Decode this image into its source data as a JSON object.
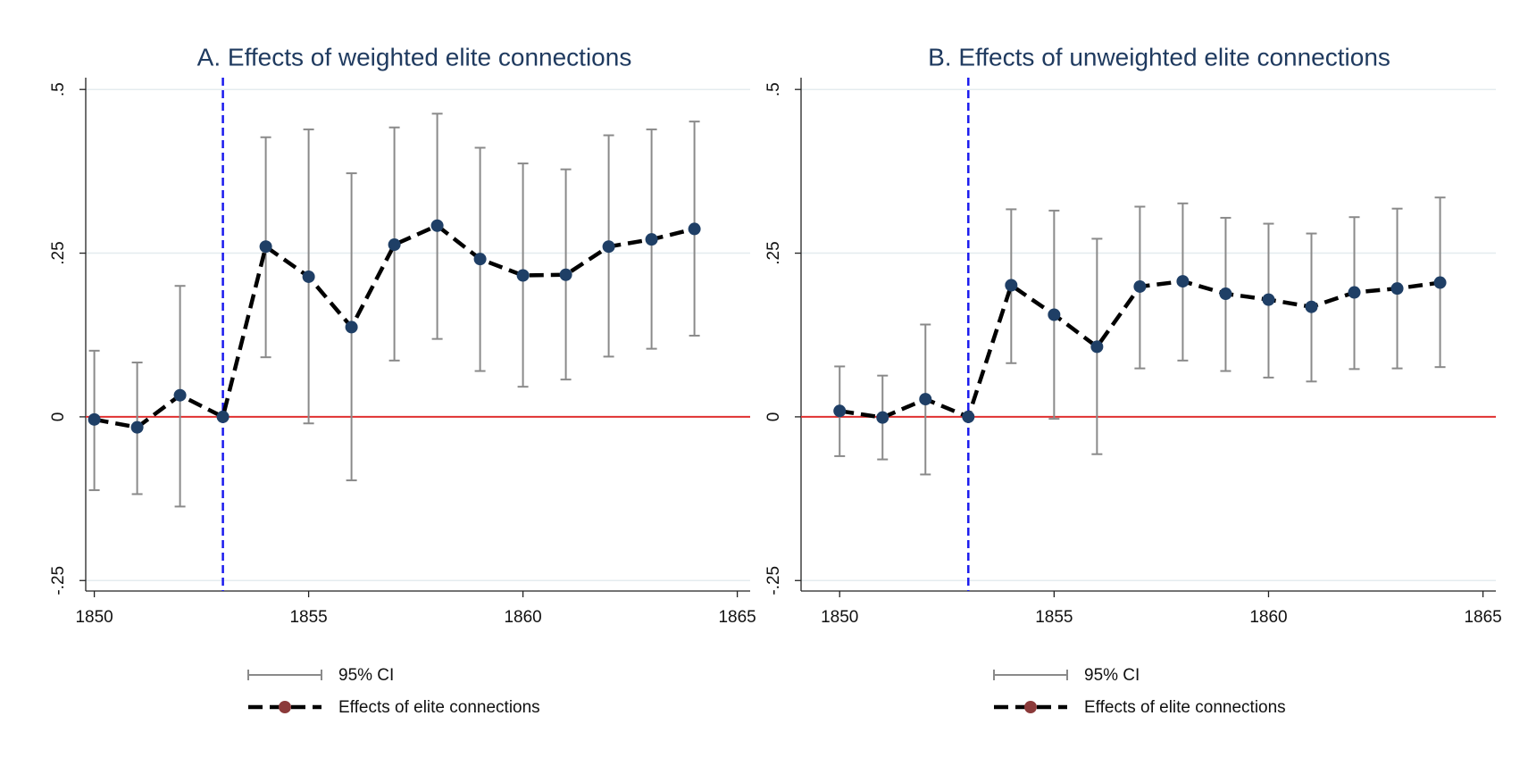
{
  "chart_data": [
    {
      "type": "line",
      "title": "A. Effects of weighted elite connections",
      "x": [
        1850,
        1851,
        1852,
        1853,
        1854,
        1855,
        1856,
        1857,
        1858,
        1859,
        1860,
        1861,
        1862,
        1863,
        1864
      ],
      "series": [
        {
          "name": "Effects of elite connections",
          "color": "#000000",
          "marker_color": "#1f3f66",
          "legend_marker_color": "#8b3a3a",
          "values": [
            -0.004,
            -0.016,
            0.033,
            0,
            0.26,
            0.214,
            0.137,
            0.263,
            0.292,
            0.241,
            0.216,
            0.217,
            0.26,
            0.271,
            0.287
          ],
          "ci_name": "95% CI",
          "ci_color": "#8a8a8a",
          "ci_lower": [
            -0.112,
            -0.118,
            -0.137,
            null,
            0.091,
            -0.01,
            -0.097,
            0.086,
            0.119,
            0.07,
            0.046,
            0.057,
            0.092,
            0.104,
            0.124
          ],
          "ci_upper": [
            0.101,
            0.083,
            0.2,
            null,
            0.427,
            0.439,
            0.372,
            0.442,
            0.463,
            0.411,
            0.387,
            0.378,
            0.43,
            0.439,
            0.451
          ]
        }
      ],
      "xlim": [
        1849.8,
        1865.3
      ],
      "xticks": [
        1850,
        1855,
        1860,
        1865
      ],
      "ylim": [
        -0.266,
        0.518
      ],
      "yticks": [
        {
          "value": -0.25,
          "label": "-.25"
        },
        0,
        {
          "value": 0.25,
          "label": ".25"
        },
        {
          "value": 0.5,
          "label": ".5"
        }
      ],
      "grid": true,
      "vline": 1853,
      "vline_color": "#1a1aee",
      "hline": 0,
      "hline_color": "#e03030"
    },
    {
      "type": "line",
      "title": "B. Effects of unweighted elite connections",
      "x": [
        1850,
        1851,
        1852,
        1853,
        1854,
        1855,
        1856,
        1857,
        1858,
        1859,
        1860,
        1861,
        1862,
        1863,
        1864
      ],
      "series": [
        {
          "name": "Effects of elite connections",
          "color": "#000000",
          "marker_color": "#1f3f66",
          "legend_marker_color": "#8b3a3a",
          "values": [
            0.009,
            -0.001,
            0.027,
            0,
            0.201,
            0.156,
            0.107,
            0.199,
            0.207,
            0.188,
            0.179,
            0.168,
            0.19,
            0.196,
            0.205
          ],
          "ci_name": "95% CI",
          "ci_color": "#8a8a8a",
          "ci_lower": [
            -0.06,
            -0.065,
            -0.088,
            null,
            0.082,
            -0.003,
            -0.057,
            0.074,
            0.086,
            0.07,
            0.06,
            0.054,
            0.073,
            0.074,
            0.076
          ],
          "ci_upper": [
            0.077,
            0.063,
            0.141,
            null,
            0.317,
            0.315,
            0.272,
            0.321,
            0.326,
            0.304,
            0.295,
            0.28,
            0.305,
            0.318,
            0.335
          ]
        }
      ],
      "xlim": [
        1849.1,
        1865.3
      ],
      "xticks": [
        1850,
        1855,
        1860,
        1865
      ],
      "ylim": [
        -0.266,
        0.518
      ],
      "yticks": [
        {
          "value": -0.25,
          "label": "-.25"
        },
        0,
        {
          "value": 0.25,
          "label": ".25"
        },
        {
          "value": 0.5,
          "label": ".5"
        }
      ],
      "grid": true,
      "vline": 1853,
      "vline_color": "#1a1aee",
      "hline": 0,
      "hline_color": "#e03030"
    }
  ]
}
